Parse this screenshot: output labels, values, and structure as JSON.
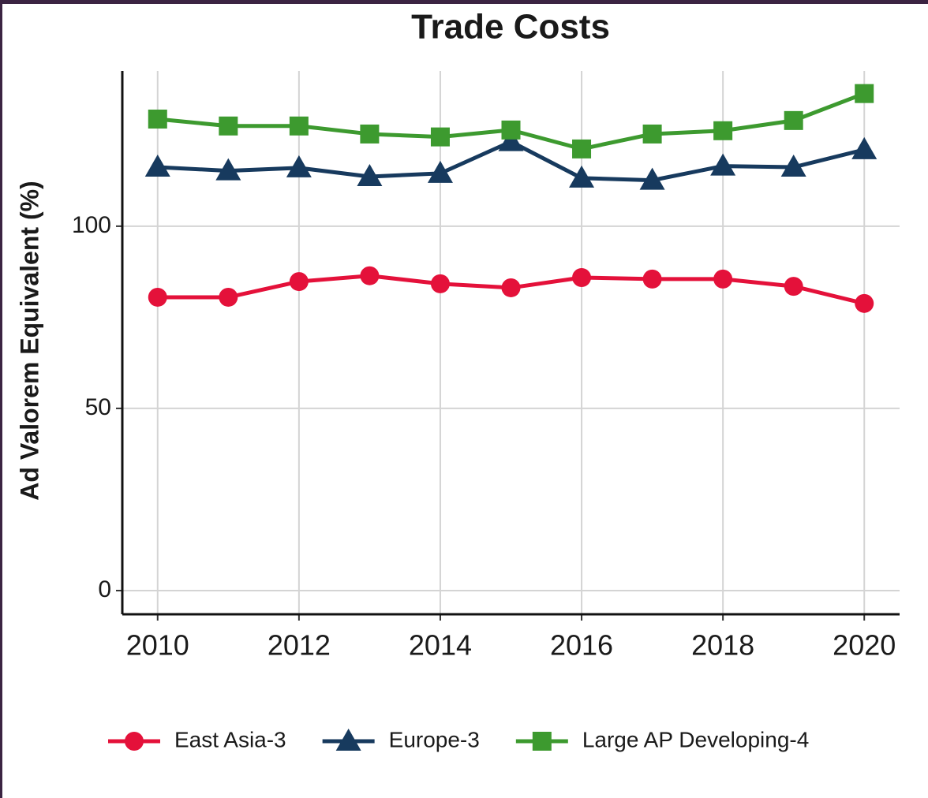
{
  "chart_data": {
    "type": "line",
    "title": "Trade Costs",
    "ylabel": "Ad Valorem Equivalent (%)",
    "x": [
      2010,
      2011,
      2012,
      2013,
      2014,
      2015,
      2016,
      2017,
      2018,
      2019,
      2020
    ],
    "series": [
      {
        "name": "East Asia-3",
        "color": "#e4113a",
        "marker": "circle",
        "values": [
          80.5,
          80.5,
          84.8,
          86.4,
          84.2,
          83.1,
          85.9,
          85.5,
          85.5,
          83.5,
          78.8
        ]
      },
      {
        "name": "Europe-3",
        "color": "#173a5e",
        "marker": "triangle",
        "values": [
          116.2,
          115.2,
          116.0,
          113.6,
          114.5,
          123.2,
          113.2,
          112.6,
          116.5,
          116.2,
          121.0
        ]
      },
      {
        "name": "Large AP Developing-4",
        "color": "#3d9a2f",
        "marker": "square",
        "values": [
          129.4,
          127.5,
          127.5,
          125.3,
          124.5,
          126.4,
          121.2,
          125.3,
          126.2,
          129.0,
          136.4
        ]
      }
    ],
    "xlim": [
      2009.5,
      2020.5
    ],
    "xticks": [
      2010,
      2012,
      2014,
      2016,
      2018,
      2020
    ],
    "ylim": [
      -6.5,
      142.6
    ],
    "yticks": [
      0,
      50,
      100
    ],
    "grid": true,
    "legend": "bottom"
  }
}
